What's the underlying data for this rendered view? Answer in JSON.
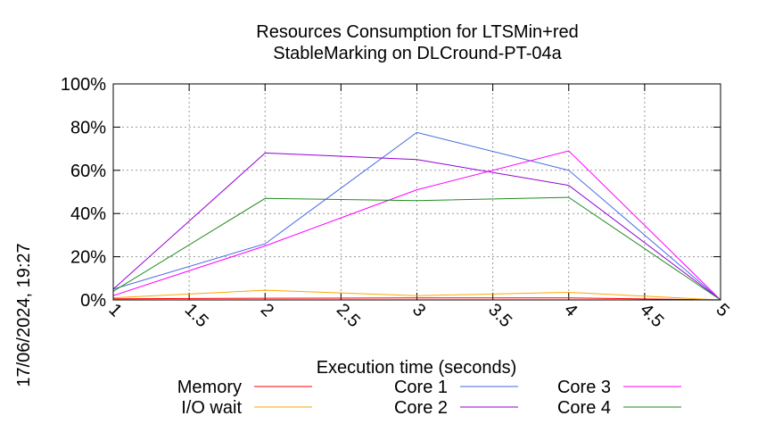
{
  "chart_data": {
    "type": "line",
    "title_line1": "Resources Consumption for LTSMin+red",
    "title_line2": "StableMarking on DLCround-PT-04a",
    "xlabel": "Execution time (seconds)",
    "ylabel": "",
    "timestamp": "17/06/2024, 19:27",
    "xlim": [
      1,
      5
    ],
    "ylim": [
      0,
      100
    ],
    "x_ticks": [
      1,
      1.5,
      2,
      2.5,
      3,
      3.5,
      4,
      4.5,
      5
    ],
    "x_tick_labels": [
      "1",
      "1.5",
      "2",
      "2.5",
      "3",
      "3.5",
      "4",
      "4.5",
      "5"
    ],
    "y_ticks": [
      0,
      20,
      40,
      60,
      80,
      100
    ],
    "y_tick_labels": [
      "0%",
      "20%",
      "40%",
      "60%",
      "80%",
      "100%"
    ],
    "grid": true,
    "legend_position": "bottom",
    "x": [
      1,
      2,
      3,
      4,
      5
    ],
    "series": [
      {
        "name": "Memory",
        "color": "#ff0000",
        "values": [
          0.5,
          0.8,
          0.9,
          0.9,
          0
        ]
      },
      {
        "name": "I/O wait",
        "color": "#ffa500",
        "values": [
          1,
          4.5,
          2,
          3.5,
          0
        ]
      },
      {
        "name": "Core 1",
        "color": "#4169e1",
        "values": [
          5,
          26,
          77.5,
          60,
          0
        ]
      },
      {
        "name": "Core 2",
        "color": "#9400d3",
        "values": [
          5,
          68,
          65,
          53,
          0
        ]
      },
      {
        "name": "Core 3",
        "color": "#ff00ff",
        "values": [
          2,
          25,
          51,
          69,
          0
        ]
      },
      {
        "name": "Core 4",
        "color": "#228b22",
        "values": [
          4,
          47,
          46,
          47.5,
          0
        ]
      }
    ]
  }
}
